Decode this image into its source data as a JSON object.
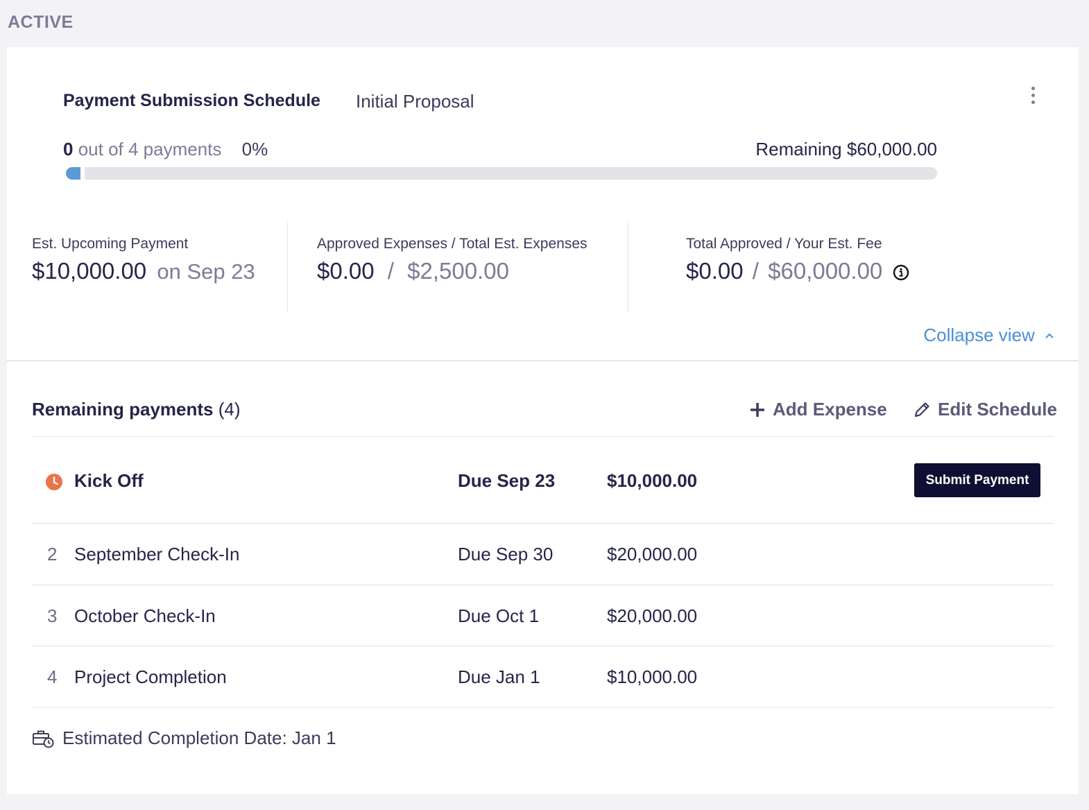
{
  "section_label": "ACTIVE",
  "card": {
    "title": "Payment Submission Schedule",
    "subtitle": "Initial Proposal",
    "progress": {
      "completed": "0",
      "out_of_text": "out of 4 payments",
      "percent_text": "0%",
      "percent_value": 0,
      "remaining_text": "Remaining $60,000.00"
    },
    "stats": {
      "upcoming": {
        "label": "Est. Upcoming Payment",
        "amount": "$10,000.00",
        "date_text": "on Sep 23"
      },
      "expenses": {
        "label": "Approved Expenses / Total Est. Expenses",
        "approved": "$0.00",
        "separator": "/",
        "total": "$2,500.00"
      },
      "fee": {
        "label": "Total Approved / Your Est. Fee",
        "approved": "$0.00",
        "separator": "/",
        "total": "$60,000.00"
      }
    },
    "collapse_label": "Collapse view"
  },
  "remaining": {
    "title": "Remaining payments",
    "count": "(4)",
    "add_expense_label": "Add Expense",
    "edit_schedule_label": "Edit Schedule",
    "rows": [
      {
        "num": "",
        "name": "Kick Off",
        "due": "Due Sep 23",
        "amount": "$10,000.00"
      },
      {
        "num": "2",
        "name": "September Check-In",
        "due": "Due Sep 30",
        "amount": "$20,000.00"
      },
      {
        "num": "3",
        "name": "October Check-In",
        "due": "Due Oct 1",
        "amount": "$20,000.00"
      },
      {
        "num": "4",
        "name": "Project Completion",
        "due": "Due Jan 1",
        "amount": "$10,000.00"
      }
    ],
    "submit_label": "Submit Payment",
    "footer_text": "Estimated Completion Date: Jan 1"
  },
  "colors": {
    "accent": "#4a8fd4",
    "progress_fill": "#5b9bd5",
    "primary_button": "#0f0f33",
    "status_pending": "#e8764a"
  },
  "icons": {
    "kebab": "more-vertical-icon",
    "info": "info-circle-icon",
    "collapse": "chevron-up-icon",
    "add": "plus-icon",
    "edit": "pencil-icon",
    "status": "clock-icon",
    "footer": "briefcase-clock-icon"
  }
}
